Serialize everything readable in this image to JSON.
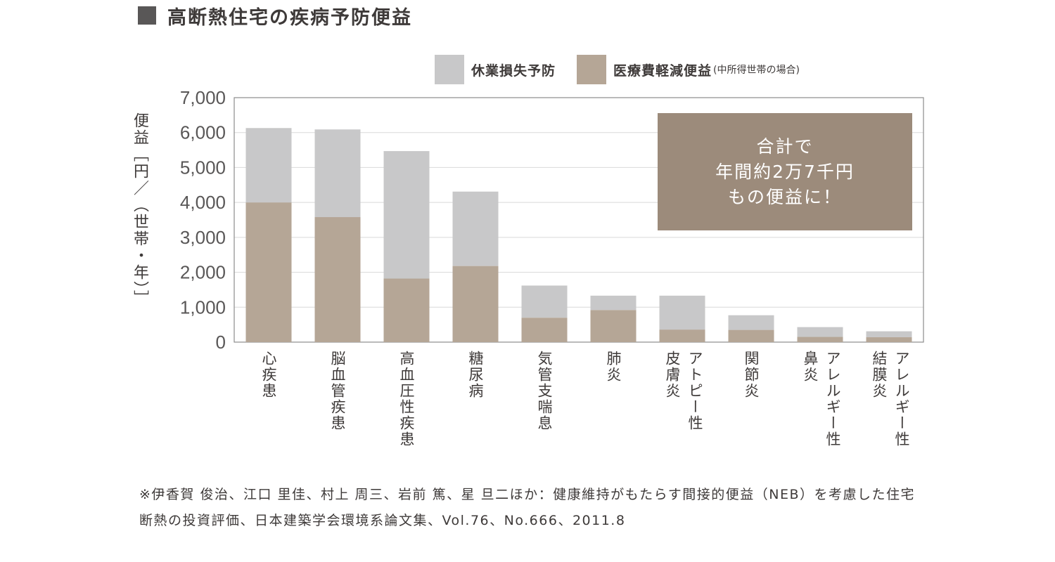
{
  "header": {
    "title": "高断熱住宅の疾病予防便益"
  },
  "legend": {
    "items": [
      {
        "label": "休業損失予防",
        "note": "",
        "color": "#c8c8c9"
      },
      {
        "label": "医療費軽減便益",
        "note": "(中所得世帯の場合)",
        "color": "#b5a696"
      }
    ]
  },
  "callout": {
    "lines": [
      "合計で",
      "年間約2万7千円",
      "もの便益に！"
    ],
    "color": "#9c8b7b"
  },
  "footnote": {
    "text": "※伊香賀 俊治、江口 里佳、村上 周三、岩前 篤、星 旦二ほか：健康維持がもたらす間接的便益（NEB）を考慮した住宅断熱の投資評価、日本建築学会環境系論文集、Vol.76、No.666、2011.8"
  },
  "chart_data": {
    "type": "bar",
    "stacked": true,
    "ylabel": "便益［円／（世帯・年）］",
    "ylim": [
      0,
      7000
    ],
    "yticks": [
      "0",
      "1,000",
      "2,000",
      "3,000",
      "4,000",
      "5,000",
      "6,000",
      "7,000"
    ],
    "grid": true,
    "categories": [
      {
        "main": "心疾患",
        "sub": ""
      },
      {
        "main": "脳血管疾患",
        "sub": ""
      },
      {
        "main": "高血圧性疾患",
        "sub": ""
      },
      {
        "main": "糖尿病",
        "sub": ""
      },
      {
        "main": "気管支喘息",
        "sub": ""
      },
      {
        "main": "肺炎",
        "sub": ""
      },
      {
        "main": "皮膚炎",
        "sub": "アトピー性"
      },
      {
        "main": "関節炎",
        "sub": ""
      },
      {
        "main": "鼻炎",
        "sub": "アレルギー性"
      },
      {
        "main": "結膜炎",
        "sub": "アレルギー性"
      }
    ],
    "series": [
      {
        "name": "医療費軽減便益",
        "color": "#b5a696",
        "values": [
          4000,
          3580,
          1820,
          2180,
          700,
          920,
          360,
          350,
          150,
          140
        ]
      },
      {
        "name": "休業損失予防",
        "color": "#c8c8c9",
        "values": [
          2130,
          2510,
          3650,
          2130,
          920,
          410,
          970,
          420,
          280,
          170
        ]
      }
    ]
  }
}
